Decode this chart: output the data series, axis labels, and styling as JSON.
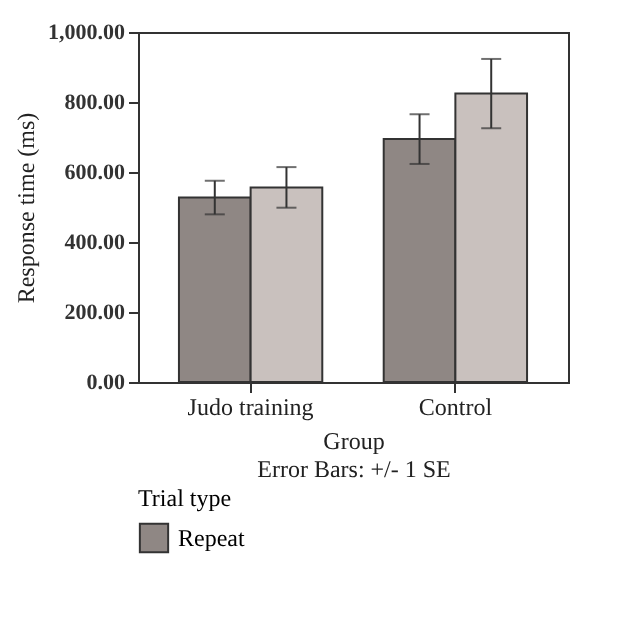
{
  "chart_data": {
    "type": "bar",
    "xlabel": "Group",
    "ylabel": "Response time (ms)",
    "legend_title": "Trial type",
    "annotations": [
      "Error Bars: +/- 1 SE"
    ],
    "categories": [
      "Judo training",
      "Control"
    ],
    "series": [
      {
        "name": "Repeat",
        "color": "#8f8784",
        "values": [
          527,
          694
        ],
        "errors": [
          48,
          71
        ]
      },
      {
        "color": "#c9c1be",
        "values": [
          556,
          824
        ],
        "errors": [
          58,
          99
        ]
      }
    ],
    "ylim": [
      0,
      1000
    ],
    "yticks": [
      {
        "value": 0,
        "label": "0.00"
      },
      {
        "value": 200,
        "label": "200.00"
      },
      {
        "value": 400,
        "label": "400.00"
      },
      {
        "value": 600,
        "label": "600.00"
      },
      {
        "value": 800,
        "label": "800.00"
      },
      {
        "value": 1000,
        "label": "1,000.00"
      }
    ],
    "grid": false,
    "legend": "bottom left"
  }
}
